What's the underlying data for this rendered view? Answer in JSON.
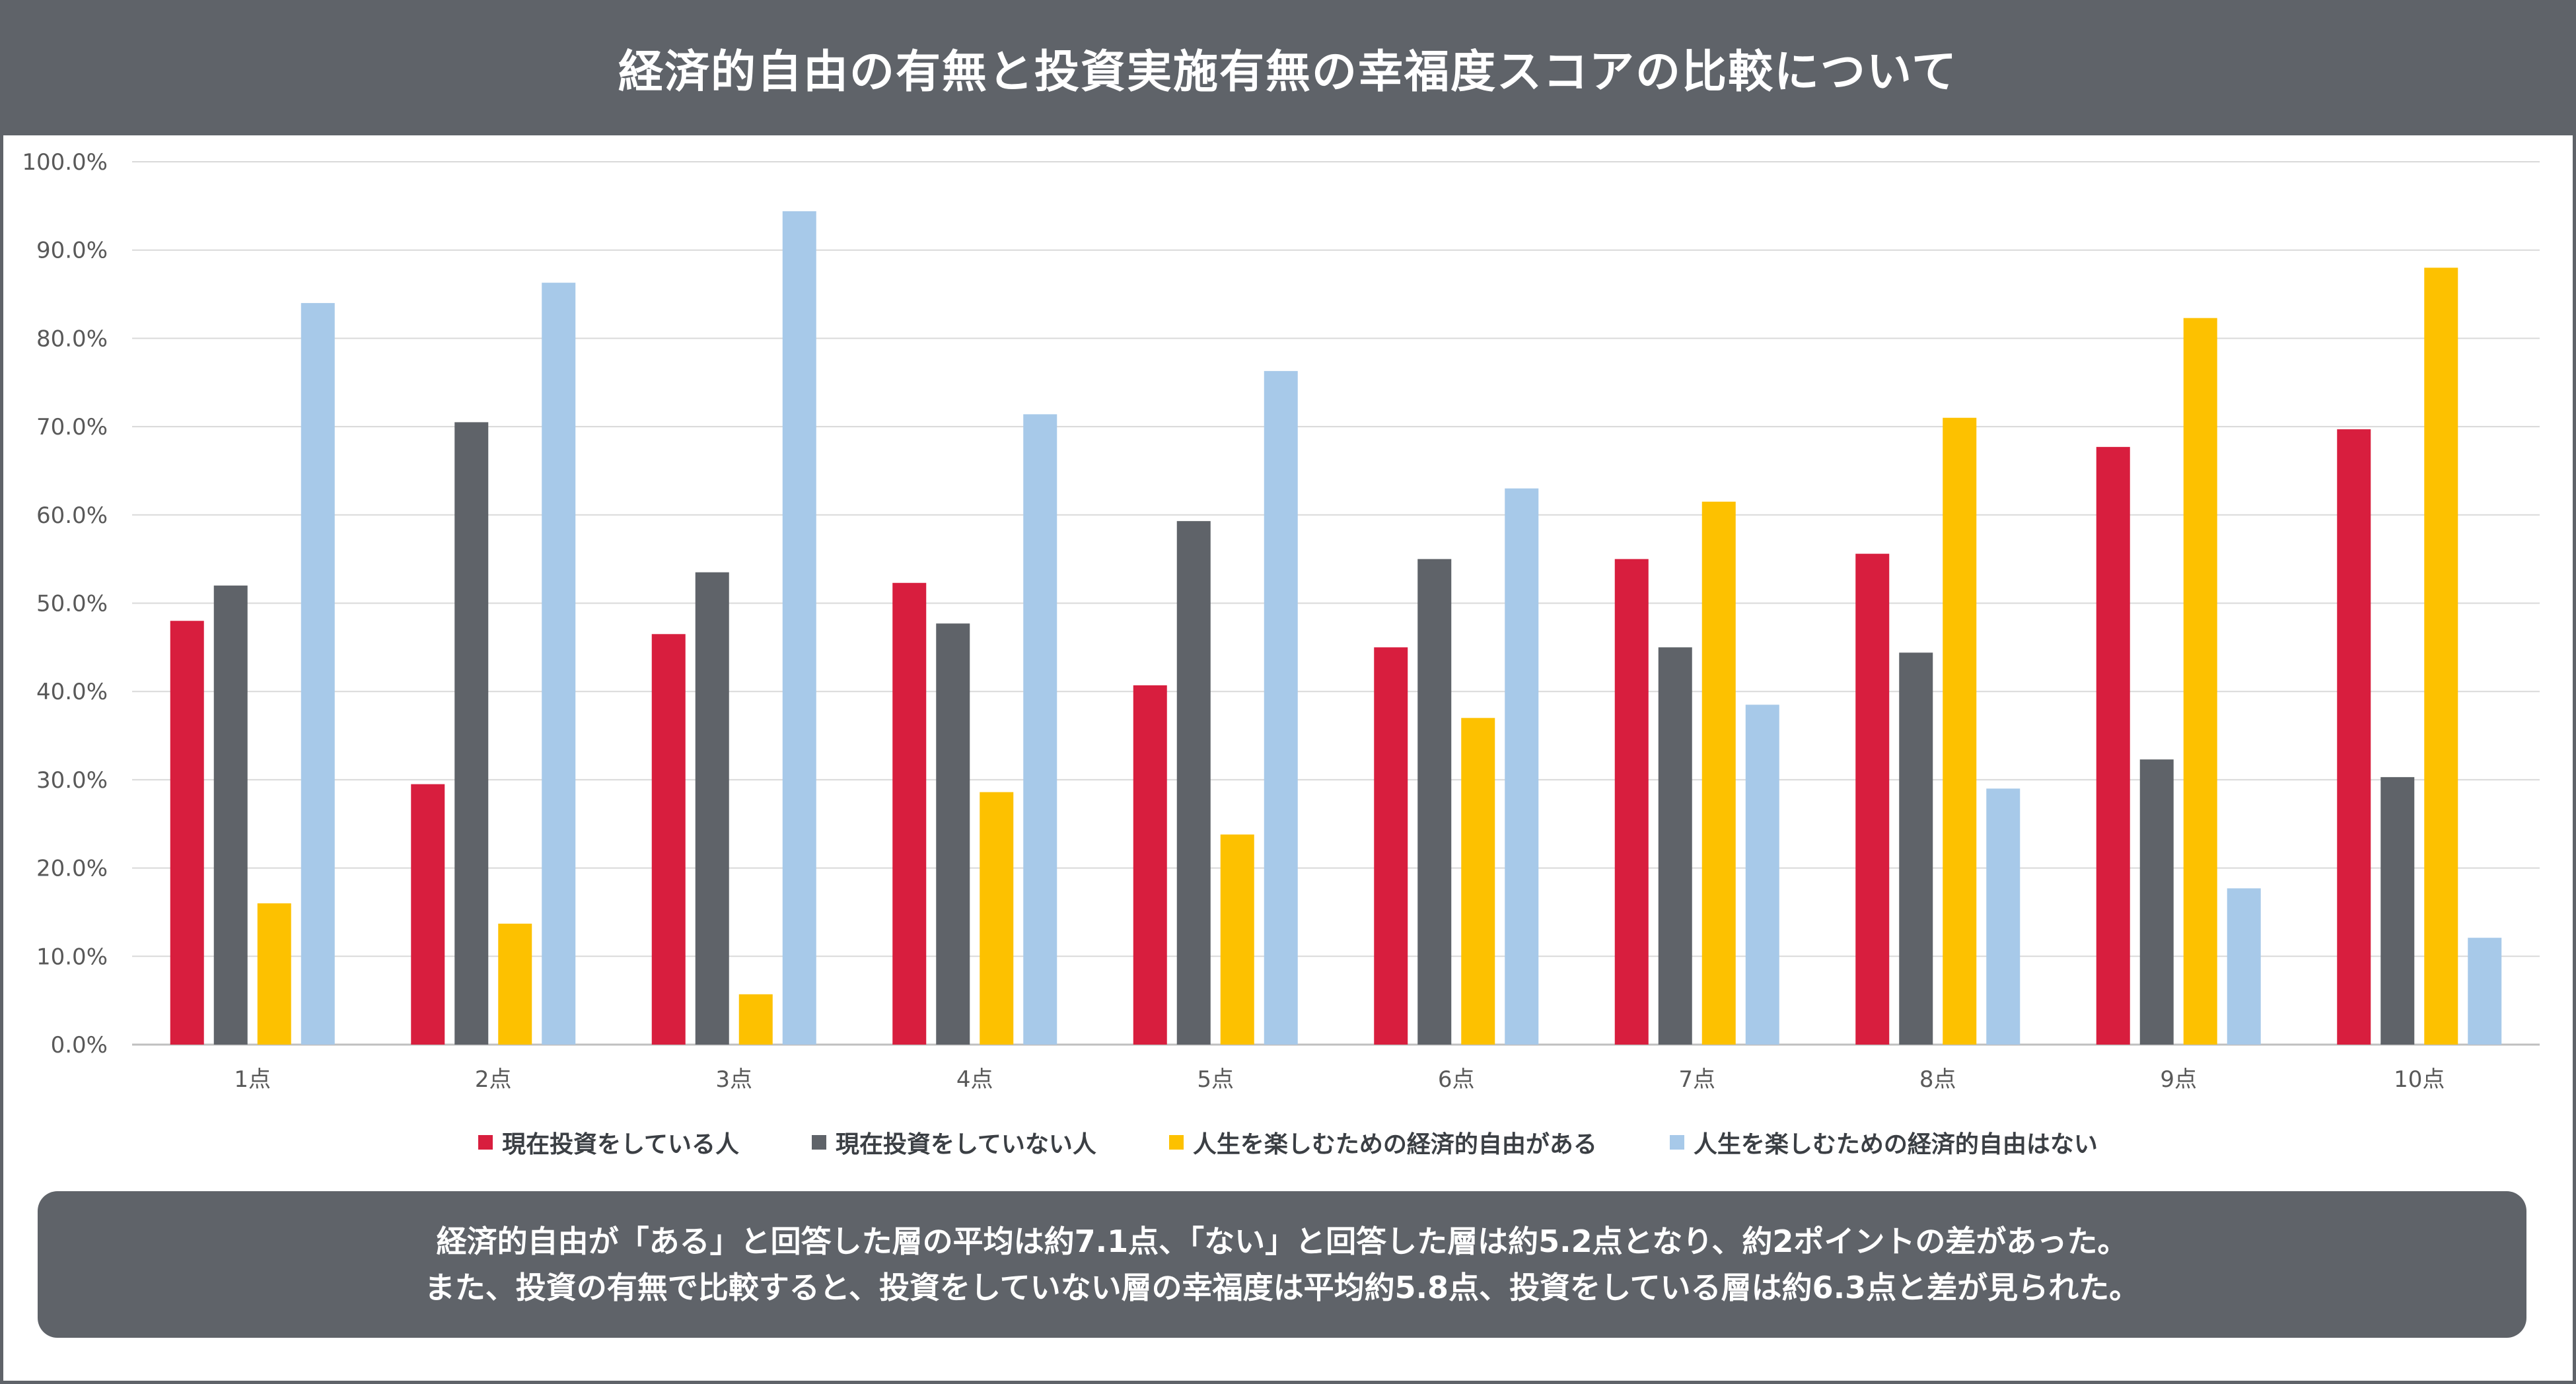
{
  "title": "経済的自由の有無と投資実施有無の幸福度スコアの比較について",
  "chart_data": {
    "type": "bar",
    "categories": [
      "1点",
      "2点",
      "3点",
      "4点",
      "5点",
      "6点",
      "7点",
      "8点",
      "9点",
      "10点"
    ],
    "series": [
      {
        "name": "現在投資をしている人",
        "color": "#d81e3e",
        "values": [
          48.0,
          29.5,
          46.5,
          52.3,
          40.7,
          45.0,
          55.0,
          55.6,
          67.7,
          69.7
        ]
      },
      {
        "name": "現在投資をしていない人",
        "color": "#5f6369",
        "values": [
          52.0,
          70.5,
          53.5,
          47.7,
          59.3,
          55.0,
          45.0,
          44.4,
          32.3,
          30.3
        ]
      },
      {
        "name": "人生を楽しむための経済的自由がある",
        "color": "#fdc100",
        "values": [
          16.0,
          13.7,
          5.7,
          28.6,
          23.8,
          37.0,
          61.5,
          71.0,
          82.3,
          88.0
        ]
      },
      {
        "name": "人生を楽しむための経済的自由はない",
        "color": "#a7c9e9",
        "values": [
          84.0,
          86.3,
          94.4,
          71.4,
          76.3,
          63.0,
          38.5,
          29.0,
          17.7,
          12.1
        ]
      }
    ],
    "yticks": [
      "0.0%",
      "10.0%",
      "20.0%",
      "30.0%",
      "40.0%",
      "50.0%",
      "60.0%",
      "70.0%",
      "80.0%",
      "90.0%",
      "100.0%"
    ],
    "ylim": [
      0,
      100
    ],
    "grid": true,
    "legend_position": "bottom"
  },
  "note": {
    "line1": "経済的自由が「ある」と回答した層の平均は約7.1点、「ない」と回答した層は約5.2点となり、約2ポイントの差があった。",
    "line2": "また、投資の有無で比較すると、投資をしていない層の幸福度は平均約5.8点、投資をしている層は約6.3点と差が見られた。"
  }
}
